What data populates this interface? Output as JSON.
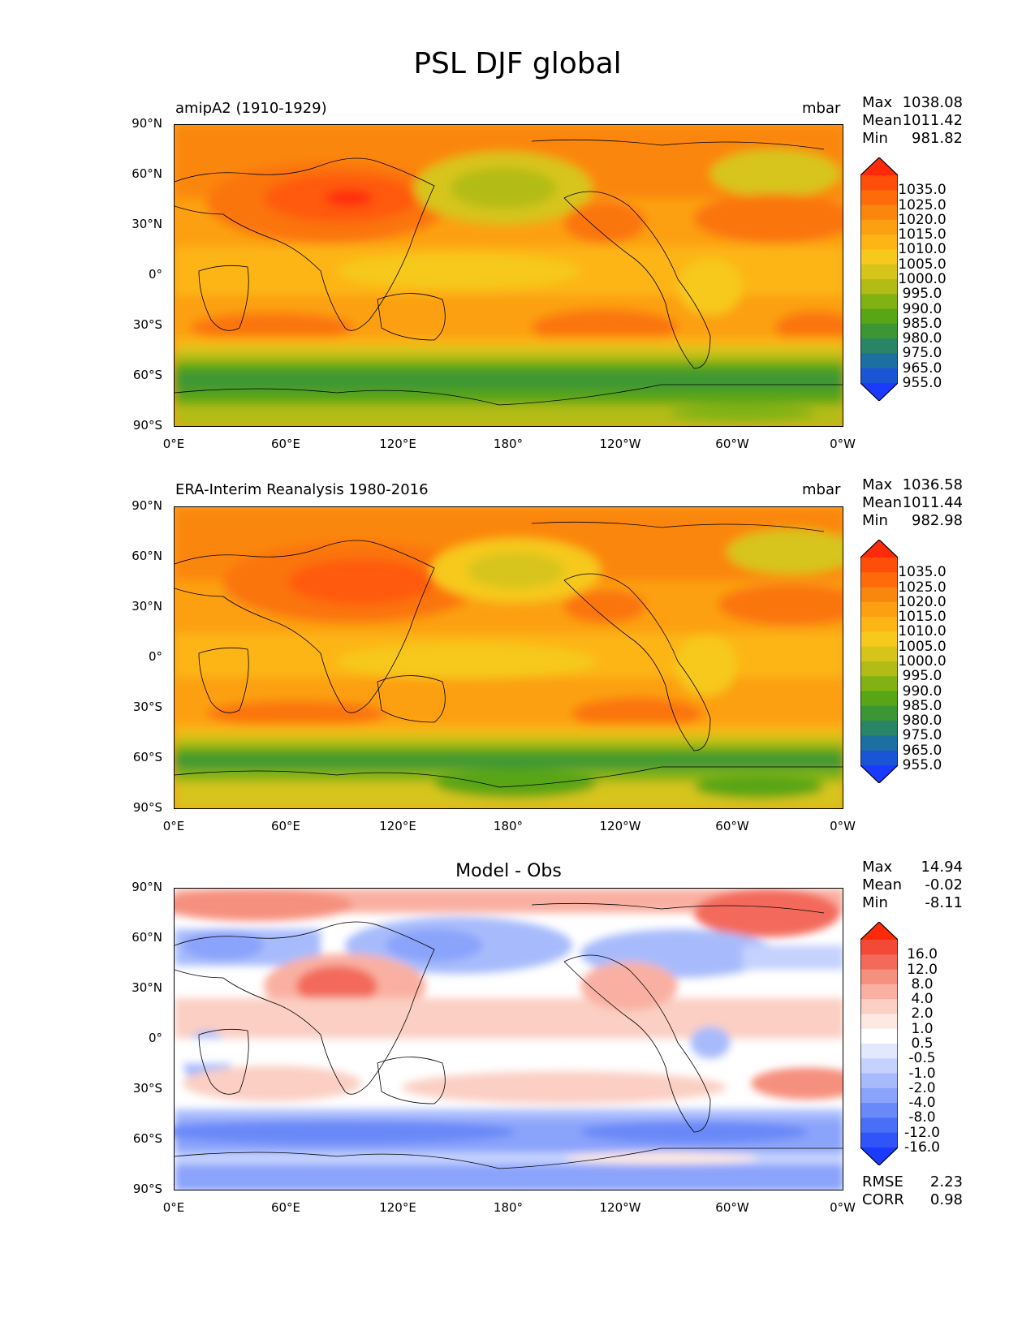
{
  "title": "PSL DJF global",
  "panels": [
    {
      "label": "amipA2 (1910-1929)",
      "units": "mbar",
      "stats": [
        {
          "name": "Max",
          "value": "1038.08"
        },
        {
          "name": "Mean",
          "value": "1011.42"
        },
        {
          "name": "Min",
          "value": "981.82"
        }
      ]
    },
    {
      "label": "ERA-Interim Reanalysis 1980-2016",
      "units": "mbar",
      "stats": [
        {
          "name": "Max",
          "value": "1036.58"
        },
        {
          "name": "Mean",
          "value": "1011.44"
        },
        {
          "name": "Min",
          "value": "982.98"
        }
      ]
    },
    {
      "label": "Model - Obs",
      "units": "",
      "stats": [
        {
          "name": "Max",
          "value": "14.94"
        },
        {
          "name": "Mean",
          "value": "-0.02"
        },
        {
          "name": "Min",
          "value": "-8.11"
        }
      ],
      "metrics": [
        {
          "name": "RMSE",
          "value": "2.23"
        },
        {
          "name": "CORR",
          "value": "0.98"
        }
      ]
    }
  ],
  "axes": {
    "lat_ticks": [
      "90°N",
      "60°N",
      "30°N",
      "0°",
      "30°S",
      "60°S",
      "90°S"
    ],
    "lon_ticks": [
      "0°E",
      "60°E",
      "120°E",
      "180°",
      "120°W",
      "60°W",
      "0°W"
    ]
  },
  "colorbars": {
    "abs": {
      "labels": [
        "1035.0",
        "1025.0",
        "1020.0",
        "1015.0",
        "1010.0",
        "1005.0",
        "1000.0",
        "995.0",
        "990.0",
        "985.0",
        "980.0",
        "975.0",
        "965.0",
        "955.0"
      ],
      "colors": [
        "#ff2a0a",
        "#ff4d0a",
        "#ff6a0a",
        "#fb860e",
        "#fca012",
        "#fdb515",
        "#f6c91c",
        "#d7c41b",
        "#b3bc16",
        "#80b214",
        "#58a516",
        "#3c9634",
        "#2a8466",
        "#1b70a0",
        "#1a55d5",
        "#1a3bff"
      ]
    },
    "diff": {
      "labels": [
        "16.0",
        "12.0",
        "8.0",
        "4.0",
        "2.0",
        "1.0",
        "0.5",
        "-0.5",
        "-1.0",
        "-2.0",
        "-4.0",
        "-8.0",
        "-12.0",
        "-16.0"
      ],
      "colors": [
        "#ff2a0a",
        "#f24a34",
        "#f36a5c",
        "#f6907e",
        "#f9b0a2",
        "#fbcfc3",
        "#fde8e2",
        "#ffffff",
        "#e2e8fe",
        "#c5d2fe",
        "#a7bbfc",
        "#8aa3fb",
        "#6a89f8",
        "#4a6ef6",
        "#2f55f8",
        "#1a3bff"
      ]
    }
  },
  "map_colors": {
    "land_line": "#000000"
  }
}
